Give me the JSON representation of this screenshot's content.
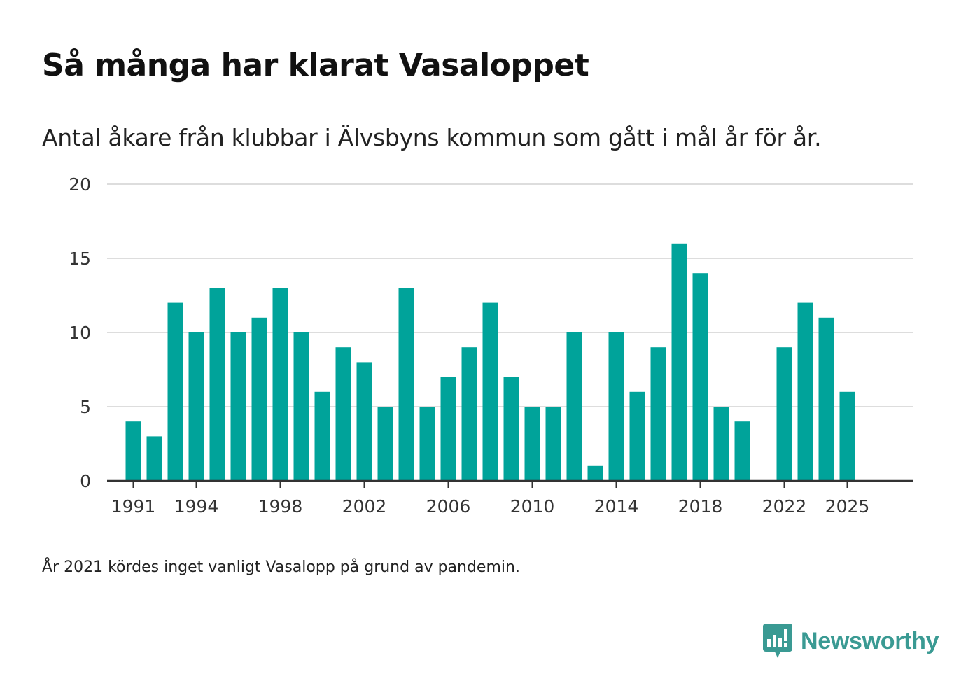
{
  "header": {
    "title": "Så många har klarat Vasaloppet",
    "subtitle": "Antal åkare från klubbar i Älvsbyns kommun som gått i mål år för år."
  },
  "footnote": "År 2021 kördes inget vanligt Vasalopp på grund av pandemin.",
  "brand": {
    "name": "Newsworthy",
    "icon": "newsworthy-logo-icon",
    "color": "#3a9a93"
  },
  "chart_data": {
    "type": "bar",
    "title": "Så många har klarat Vasaloppet",
    "subtitle": "Antal åkare från klubbar i Älvsbyns kommun som gått i mål år för år.",
    "xlabel": "",
    "ylabel": "",
    "x": [
      1991,
      1992,
      1993,
      1994,
      1995,
      1996,
      1997,
      1998,
      1999,
      2000,
      2001,
      2002,
      2003,
      2004,
      2005,
      2006,
      2007,
      2008,
      2009,
      2010,
      2011,
      2012,
      2013,
      2014,
      2015,
      2016,
      2017,
      2018,
      2019,
      2020,
      2021,
      2022,
      2023,
      2024,
      2025
    ],
    "values": [
      4,
      3,
      12,
      10,
      13,
      10,
      11,
      13,
      10,
      6,
      9,
      8,
      5,
      13,
      5,
      7,
      9,
      12,
      7,
      5,
      5,
      10,
      1,
      10,
      6,
      9,
      16,
      14,
      5,
      4,
      null,
      9,
      12,
      11,
      6
    ],
    "x_ticks": [
      1991,
      1994,
      1998,
      2002,
      2006,
      2010,
      2014,
      2018,
      2022,
      2025
    ],
    "y_ticks": [
      0,
      5,
      10,
      15,
      20
    ],
    "ylim": [
      0,
      20
    ],
    "xlim": [
      1989.75,
      2027.25
    ],
    "grid": "horizontal",
    "legend": "none",
    "bar_color": "#00a39a",
    "grid_color": "#dddddd",
    "axis_color": "#333333"
  }
}
